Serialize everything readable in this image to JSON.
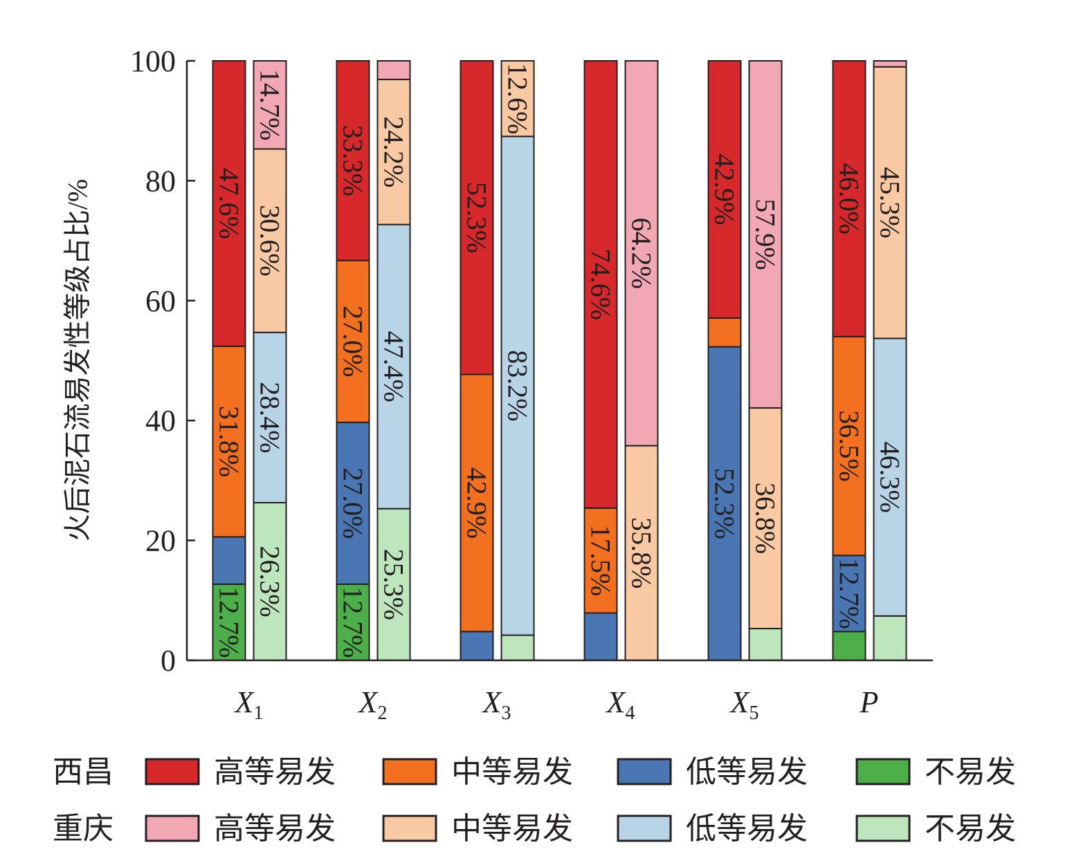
{
  "chart_data": {
    "type": "bar",
    "stacked": true,
    "orientation": "vertical",
    "ylabel": "火后泥石流易发性等级占比/%",
    "ylim": [
      0,
      100
    ],
    "yticks": [
      0,
      20,
      40,
      60,
      80,
      100
    ],
    "grid": false,
    "categories": [
      {
        "main": "X",
        "sub": "1"
      },
      {
        "main": "X",
        "sub": "2"
      },
      {
        "main": "X",
        "sub": "3"
      },
      {
        "main": "X",
        "sub": "4"
      },
      {
        "main": "X",
        "sub": "5"
      },
      {
        "main": "P",
        "sub": ""
      }
    ],
    "levels": [
      "不易发",
      "低等易发",
      "中等易发",
      "高等易发"
    ],
    "groups": [
      {
        "name": "西昌",
        "colors": [
          "#4daf4a",
          "#4a76b4",
          "#f37021",
          "#d7282c"
        ],
        "stacks": [
          [
            12.7,
            7.9,
            31.8,
            47.6
          ],
          [
            12.7,
            27.0,
            27.0,
            33.3
          ],
          [
            0,
            4.8,
            42.9,
            52.3
          ],
          [
            0,
            7.9,
            17.5,
            74.6
          ],
          [
            0,
            52.3,
            4.8,
            42.9
          ],
          [
            4.8,
            12.7,
            36.5,
            46.0
          ]
        ],
        "labels": [
          [
            "12.7%",
            null,
            "31.8%",
            "47.6%"
          ],
          [
            "12.7%",
            "27.0%",
            "27.0%",
            "33.3%"
          ],
          [
            null,
            null,
            "42.9%",
            "52.3%"
          ],
          [
            null,
            null,
            "17.5%",
            "74.6%"
          ],
          [
            null,
            "52.3%",
            null,
            "42.9%"
          ],
          [
            null,
            "12.7%",
            "36.5%",
            "46.0%"
          ]
        ]
      },
      {
        "name": "重庆",
        "colors": [
          "#bde6bd",
          "#b8d4e7",
          "#f9c9a4",
          "#f1a7b4"
        ],
        "stacks": [
          [
            26.3,
            28.4,
            30.6,
            14.7
          ],
          [
            25.3,
            47.4,
            24.2,
            3.1
          ],
          [
            4.2,
            83.2,
            12.6,
            0
          ],
          [
            0,
            0,
            35.8,
            64.2
          ],
          [
            5.3,
            0,
            36.8,
            57.9
          ],
          [
            7.4,
            46.3,
            45.3,
            1.0
          ]
        ],
        "labels": [
          [
            "26.3%",
            "28.4%",
            "30.6%",
            "14.7%"
          ],
          [
            "25.3%",
            "47.4%",
            "24.2%",
            null
          ],
          [
            null,
            "83.2%",
            "12.6%",
            null
          ],
          [
            null,
            null,
            "35.8%",
            "64.2%"
          ],
          [
            null,
            null,
            "36.8%",
            "57.9%"
          ],
          [
            null,
            "46.3%",
            "45.3%",
            null
          ]
        ]
      }
    ],
    "legend": {
      "placement": "bottom",
      "rows": [
        {
          "region": "西昌",
          "items": [
            "高等易发",
            "中等易发",
            "低等易发",
            "不易发"
          ],
          "colors": [
            "#d7282c",
            "#f37021",
            "#4a76b4",
            "#4daf4a"
          ]
        },
        {
          "region": "重庆",
          "items": [
            "高等易发",
            "中等易发",
            "低等易发",
            "不易发"
          ],
          "colors": [
            "#f1a7b4",
            "#f9c9a4",
            "#b8d4e7",
            "#bde6bd"
          ]
        }
      ]
    }
  }
}
